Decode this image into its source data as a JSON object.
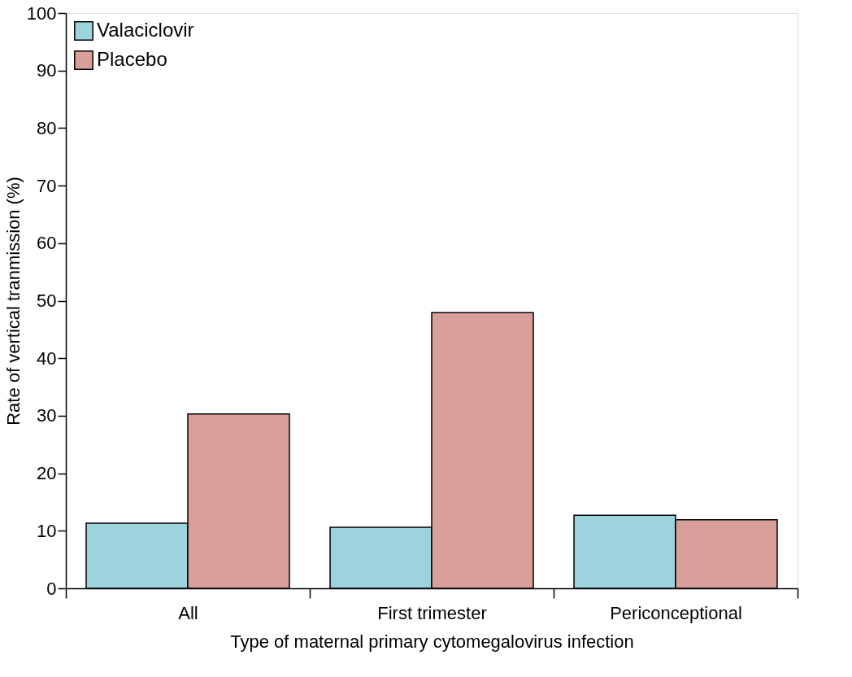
{
  "chart_data": {
    "type": "bar",
    "xlabel": "Type of maternal primary cytomegalovirus infection",
    "ylabel": "Rate of vertical tranmission (%)",
    "categories": [
      "All",
      "First trimester",
      "Periconceptional"
    ],
    "series": [
      {
        "name": "Valaciclovir",
        "color": "#9dd3dc",
        "values": [
          11.3,
          10.6,
          12.7
        ]
      },
      {
        "name": "Placebo",
        "color": "#d9a09b",
        "values": [
          30.3,
          47.9,
          11.9
        ]
      }
    ],
    "ylim": [
      0,
      100
    ],
    "yticks": [
      0,
      10,
      20,
      30,
      40,
      50,
      60,
      70,
      80,
      90,
      100
    ],
    "grid": false,
    "legend": "top left"
  }
}
